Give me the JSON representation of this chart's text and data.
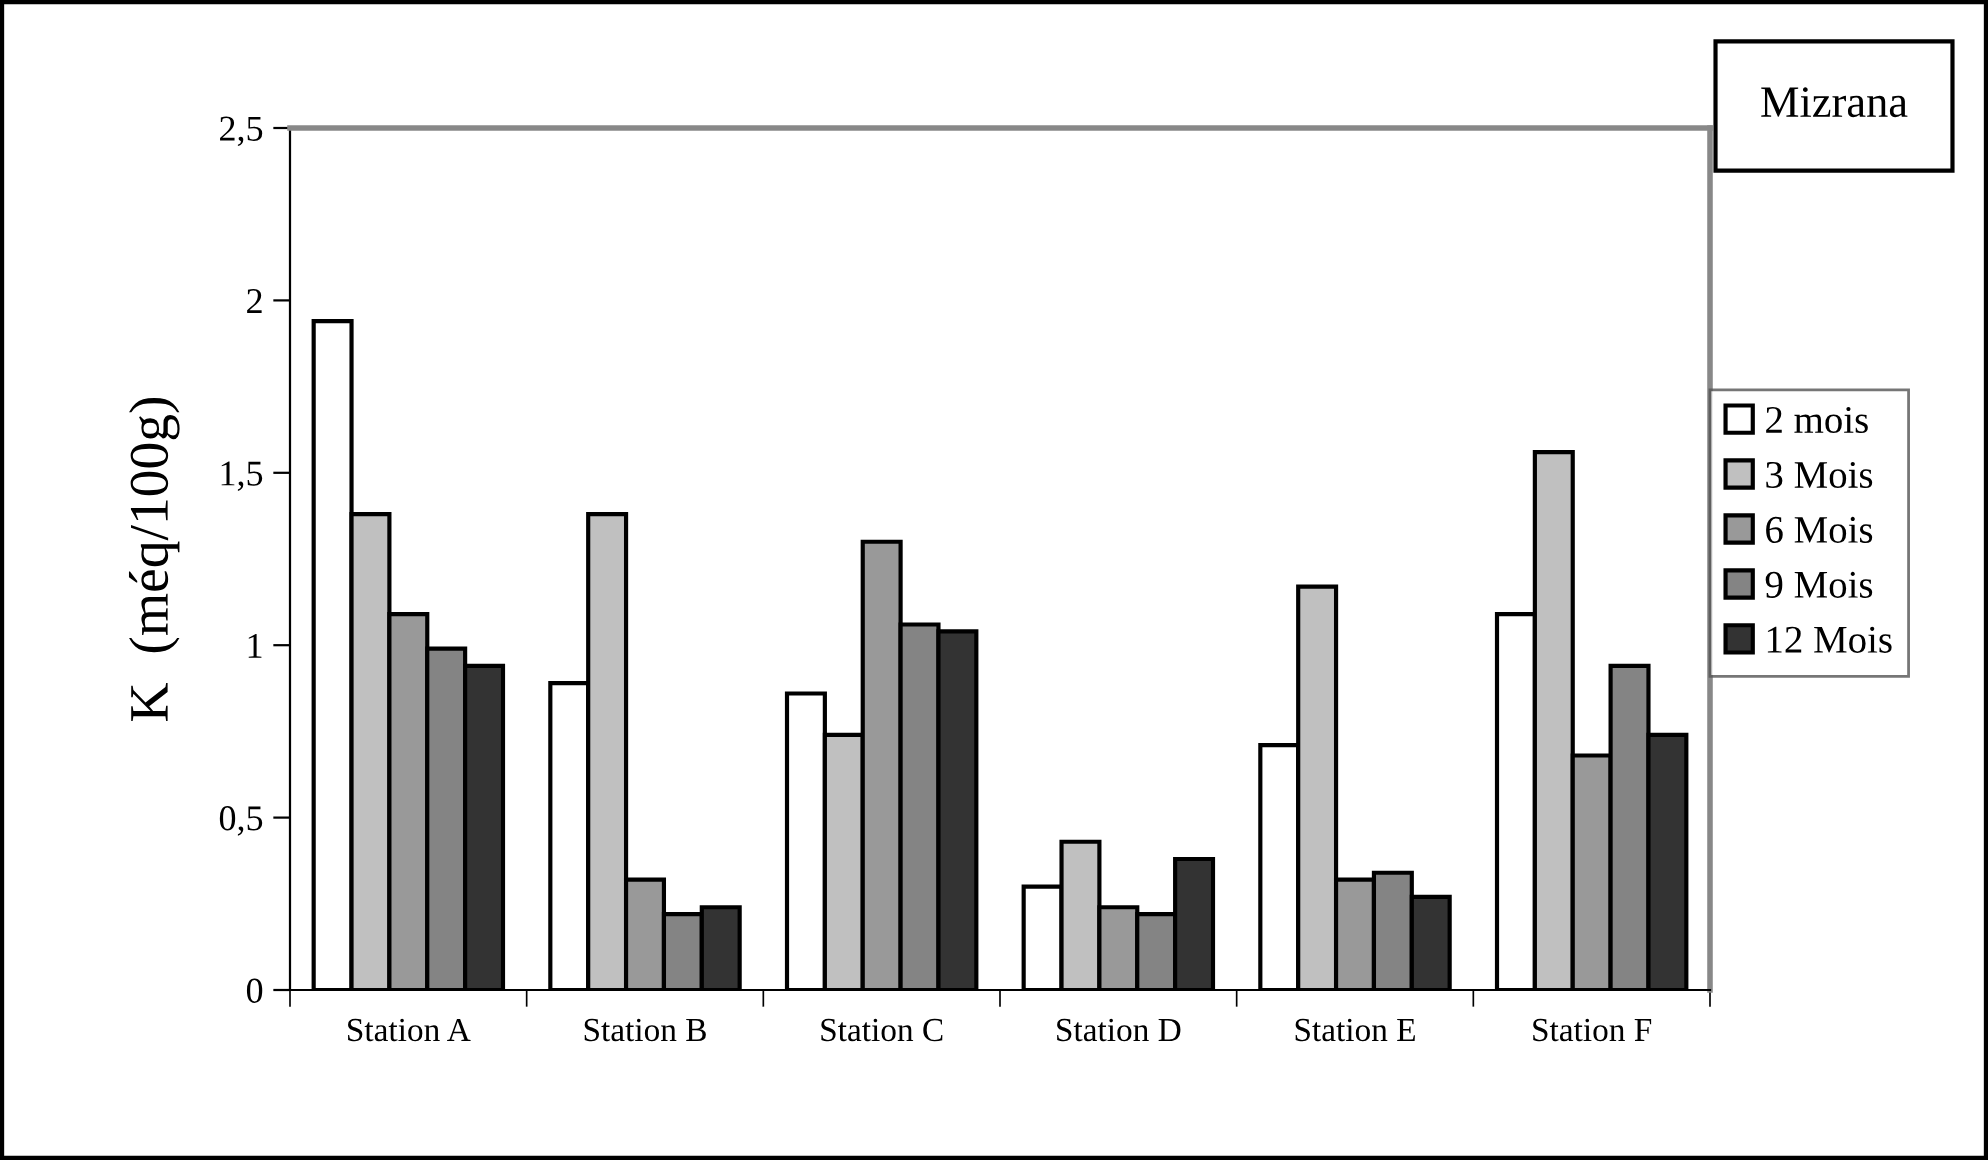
{
  "chart_data": {
    "type": "bar",
    "title": "Mizrana",
    "ylabel": "K  (méq/100g)",
    "categories": [
      "Station A",
      "Station B",
      "Station C",
      "Station D",
      "Station E",
      "Station F"
    ],
    "series": [
      {
        "name": "2 mois",
        "color": "#ffffff",
        "values": [
          1.94,
          0.89,
          0.86,
          0.3,
          0.71,
          1.09
        ]
      },
      {
        "name": "3 Mois",
        "color": "#c0c0c0",
        "values": [
          1.38,
          1.38,
          0.74,
          0.43,
          1.17,
          1.56
        ]
      },
      {
        "name": "6 Mois",
        "color": "#999999",
        "values": [
          1.09,
          0.32,
          1.3,
          0.24,
          0.32,
          0.68
        ]
      },
      {
        "name": "9 Mois",
        "color": "#848484",
        "values": [
          0.99,
          0.22,
          1.06,
          0.22,
          0.34,
          0.94
        ]
      },
      {
        "name": "12 Mois",
        "color": "#333333",
        "values": [
          0.94,
          0.24,
          1.04,
          0.38,
          0.27,
          0.74
        ]
      }
    ],
    "ylim": [
      0,
      2.5
    ],
    "yticks": [
      0,
      {
        "value": 0.5,
        "label": "0,5"
      },
      1,
      {
        "value": 1.5,
        "label": "1,5"
      },
      2,
      {
        "value": 2.5,
        "label": "2,5"
      }
    ],
    "grid": false,
    "legend": "right"
  }
}
